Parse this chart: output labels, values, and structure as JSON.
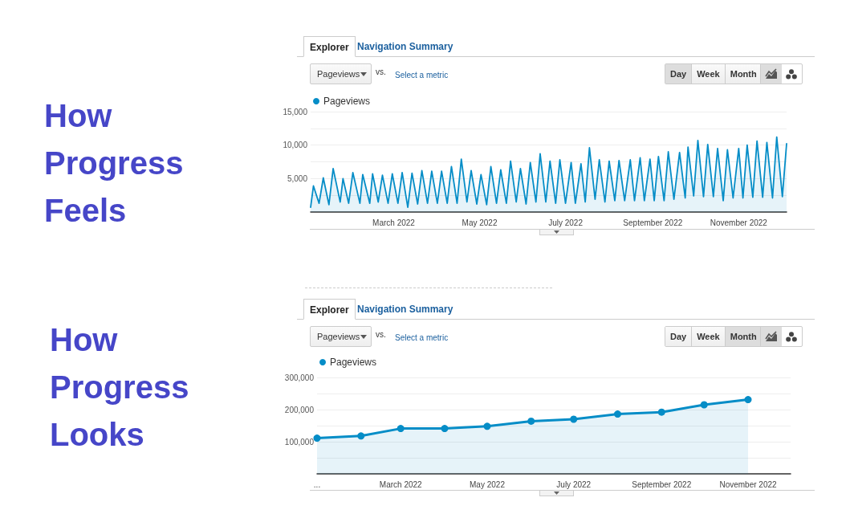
{
  "chart_data": [
    {
      "type": "area",
      "title": "How Progress Feels",
      "annotations": [
        "Explorer",
        "Navigation Summary",
        "Pageviews",
        "vs.",
        "Select a metric",
        "Day",
        "Week",
        "Month"
      ],
      "x": [
        "2022-01-01",
        "2022-01-03",
        "2022-01-07",
        "2022-01-10",
        "2022-01-14",
        "2022-01-17",
        "2022-01-22",
        "2022-01-24",
        "2022-01-28",
        "2022-01-31",
        "2022-02-05",
        "2022-02-07",
        "2022-02-12",
        "2022-02-14",
        "2022-02-18",
        "2022-02-21",
        "2022-02-25",
        "2022-02-28",
        "2022-03-04",
        "2022-03-07",
        "2022-03-11",
        "2022-03-14",
        "2022-03-18",
        "2022-03-21",
        "2022-03-25",
        "2022-03-28",
        "2022-04-01",
        "2022-04-04",
        "2022-04-08",
        "2022-04-11",
        "2022-04-15",
        "2022-04-18",
        "2022-04-22",
        "2022-04-25",
        "2022-04-29",
        "2022-05-02",
        "2022-05-06",
        "2022-05-09",
        "2022-05-13",
        "2022-05-16",
        "2022-05-20",
        "2022-05-23",
        "2022-05-27",
        "2022-05-30",
        "2022-06-03",
        "2022-06-06",
        "2022-06-10",
        "2022-06-13",
        "2022-06-17",
        "2022-06-20",
        "2022-06-24",
        "2022-06-27",
        "2022-07-01",
        "2022-07-05",
        "2022-07-08",
        "2022-07-12",
        "2022-07-15",
        "2022-07-18",
        "2022-07-22",
        "2022-07-25",
        "2022-07-29",
        "2022-08-01",
        "2022-08-05",
        "2022-08-08",
        "2022-08-12",
        "2022-08-16",
        "2022-08-19",
        "2022-08-23",
        "2022-08-26",
        "2022-08-30",
        "2022-09-02",
        "2022-09-05",
        "2022-09-09",
        "2022-09-12",
        "2022-09-16",
        "2022-09-20",
        "2022-09-24",
        "2022-09-26",
        "2022-09-30",
        "2022-10-03",
        "2022-10-07",
        "2022-10-10",
        "2022-10-14",
        "2022-10-17",
        "2022-10-21",
        "2022-10-24",
        "2022-10-28",
        "2022-11-01",
        "2022-11-04",
        "2022-11-07",
        "2022-11-11",
        "2022-11-14",
        "2022-11-18",
        "2022-11-21",
        "2022-11-25",
        "2022-11-28",
        "2022-12-02",
        "2022-12-05"
      ],
      "series": [
        {
          "name": "Pageviews",
          "color": "#058dc7",
          "values": [
            700,
            3900,
            1300,
            5100,
            1100,
            6500,
            1500,
            5000,
            1300,
            5900,
            1300,
            5600,
            1300,
            5700,
            1500,
            5500,
            1300,
            5700,
            1300,
            5900,
            700,
            5800,
            1200,
            6200,
            1300,
            6100,
            1300,
            6100,
            1300,
            6800,
            1300,
            7900,
            1500,
            6200,
            1200,
            5600,
            1100,
            6800,
            1300,
            6300,
            1300,
            7600,
            1500,
            6500,
            1200,
            7400,
            1500,
            8700,
            1500,
            7600,
            1300,
            7800,
            1300,
            7400,
            1300,
            7200,
            1500,
            9600,
            1900,
            7800,
            1500,
            7600,
            1700,
            7700,
            1700,
            7800,
            1700,
            8100,
            1700,
            7900,
            1700,
            8300,
            1700,
            9000,
            1900,
            8900,
            2100,
            9700,
            2400,
            10700,
            2300,
            10100,
            2300,
            9500,
            1700,
            9300,
            2100,
            9500,
            2100,
            10000,
            2200,
            10600,
            2200,
            10400,
            2100,
            11200,
            2300,
            10200
          ]
        }
      ],
      "xlim": [
        "2022-01-01",
        "2022-12-05"
      ],
      "xticks": [
        {
          "value": "2022-03-01",
          "label": "March 2022"
        },
        {
          "value": "2022-05-01",
          "label": "May 2022"
        },
        {
          "value": "2022-07-01",
          "label": "July 2022"
        },
        {
          "value": "2022-09-01",
          "label": "September 2022"
        },
        {
          "value": "2022-11-01",
          "label": "November 2022"
        }
      ],
      "ylim": [
        0,
        15000
      ],
      "yticks": [
        {
          "value": 0,
          "label": null
        },
        {
          "value": 2500,
          "label": null
        },
        {
          "value": 5000,
          "label": "5,000"
        },
        {
          "value": 7500,
          "label": null
        },
        {
          "value": 10000,
          "label": "10,000"
        },
        {
          "value": 12500,
          "label": null
        },
        {
          "value": 15000,
          "label": "15,000"
        }
      ],
      "grid": "y",
      "legend": "top left",
      "marker": "none"
    },
    {
      "type": "area",
      "title": "How Progress Looks",
      "annotations": [
        "Explorer",
        "Navigation Summary",
        "Pageviews",
        "vs.",
        "Select a metric",
        "Day",
        "Week",
        "Month"
      ],
      "x": [
        "2022-01",
        "2022-02",
        "2022-03",
        "2022-04",
        "2022-05",
        "2022-06",
        "2022-07",
        "2022-08",
        "2022-09",
        "2022-10",
        "2022-11"
      ],
      "series": [
        {
          "name": "Pageviews",
          "color": "#058dc7",
          "values": [
            111000,
            118000,
            141000,
            141000,
            148000,
            164000,
            170000,
            186000,
            192000,
            215000,
            231000
          ]
        }
      ],
      "xlim": [
        "2022-01",
        "2022-12"
      ],
      "xticks": [
        {
          "value": "2022-01",
          "label": "..."
        },
        {
          "value": "2022-03",
          "label": "March 2022"
        },
        {
          "value": "2022-05",
          "label": "May 2022"
        },
        {
          "value": "2022-07",
          "label": "July 2022"
        },
        {
          "value": "2022-09",
          "label": "September 2022"
        },
        {
          "value": "2022-11",
          "label": "November 2022"
        }
      ],
      "ylim": [
        0,
        300000
      ],
      "yticks": [
        {
          "value": 0,
          "label": null
        },
        {
          "value": 50000,
          "label": null
        },
        {
          "value": 100000,
          "label": "100,000"
        },
        {
          "value": 150000,
          "label": null
        },
        {
          "value": 200000,
          "label": "200,000"
        },
        {
          "value": 250000,
          "label": null
        },
        {
          "value": 300000,
          "label": "300,000"
        }
      ],
      "grid": "y",
      "legend": "top left",
      "marker": "circle"
    }
  ]
}
